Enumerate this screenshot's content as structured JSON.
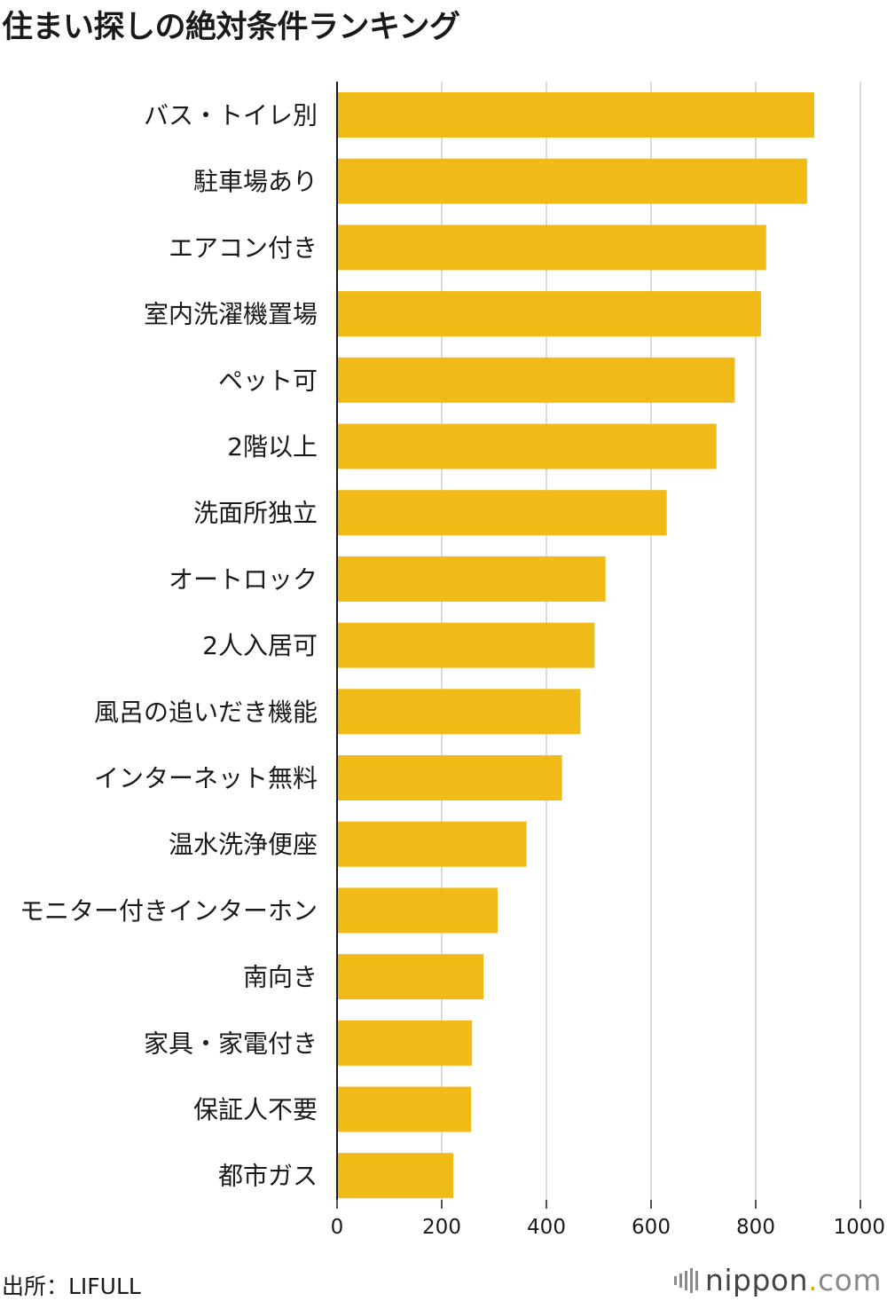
{
  "chart_data": {
    "type": "bar",
    "orientation": "horizontal",
    "title": "住まい探しの絶対条件ランキング",
    "categories": [
      "バス・トイレ別",
      "駐車場あり",
      "エアコン付き",
      "室内洗濯機置場",
      "ペット可",
      "2階以上",
      "洗面所独立",
      "オートロック",
      "2人入居可",
      "風呂の追いだき機能",
      "インターネット無料",
      "温水洗浄便座",
      "モニター付きインターホン",
      "南向き",
      "家具・家電付き",
      "保証人不要",
      "都市ガス"
    ],
    "values": [
      912,
      898,
      820,
      810,
      760,
      725,
      630,
      513,
      492,
      465,
      430,
      362,
      307,
      280,
      258,
      256,
      222
    ],
    "xlim": [
      0,
      1000
    ],
    "xticks": [
      0,
      200,
      400,
      600,
      800,
      1000
    ],
    "grid": true,
    "legend": "none",
    "bar_color": "#f0bb16",
    "grid_color": "#cfcfcf"
  },
  "footer": {
    "source": "出所：LIFULL",
    "brand_name": "nippon",
    "brand_dot": ".",
    "brand_suffix": "com"
  }
}
